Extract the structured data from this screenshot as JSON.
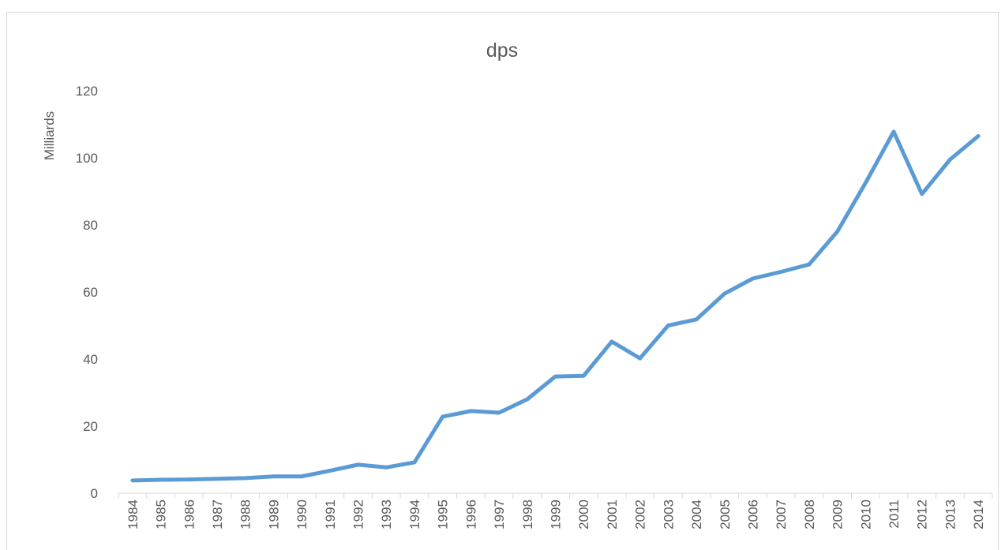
{
  "chart_data": {
    "type": "line",
    "title": "dps",
    "ylabel": "Milliards",
    "categories": [
      "1984",
      "1985",
      "1986",
      "1987",
      "1988",
      "1989",
      "1990",
      "1991",
      "1992",
      "1993",
      "1994",
      "1995",
      "1996",
      "1997",
      "1998",
      "1999",
      "2000",
      "2001",
      "2002",
      "2003",
      "2004",
      "2005",
      "2006",
      "2007",
      "2008",
      "2009",
      "2010",
      "2011",
      "2012",
      "2013",
      "2014"
    ],
    "series": [
      {
        "name": "dps",
        "color": "#5b9bd5",
        "values": [
          3.8,
          4.0,
          4.1,
          4.3,
          4.5,
          5.0,
          5.0,
          6.7,
          8.5,
          7.7,
          9.2,
          22.8,
          24.5,
          24.0,
          28.0,
          34.8,
          35.0,
          45.2,
          40.2,
          50.0,
          51.8,
          59.5,
          64.0,
          66.0,
          68.2,
          78.0,
          92.5,
          107.8,
          89.2,
          99.5,
          106.5
        ]
      }
    ],
    "ylim": [
      0,
      120
    ],
    "yticks": [
      0,
      20,
      40,
      60,
      80,
      100,
      120
    ],
    "grid": false,
    "legend": false
  }
}
